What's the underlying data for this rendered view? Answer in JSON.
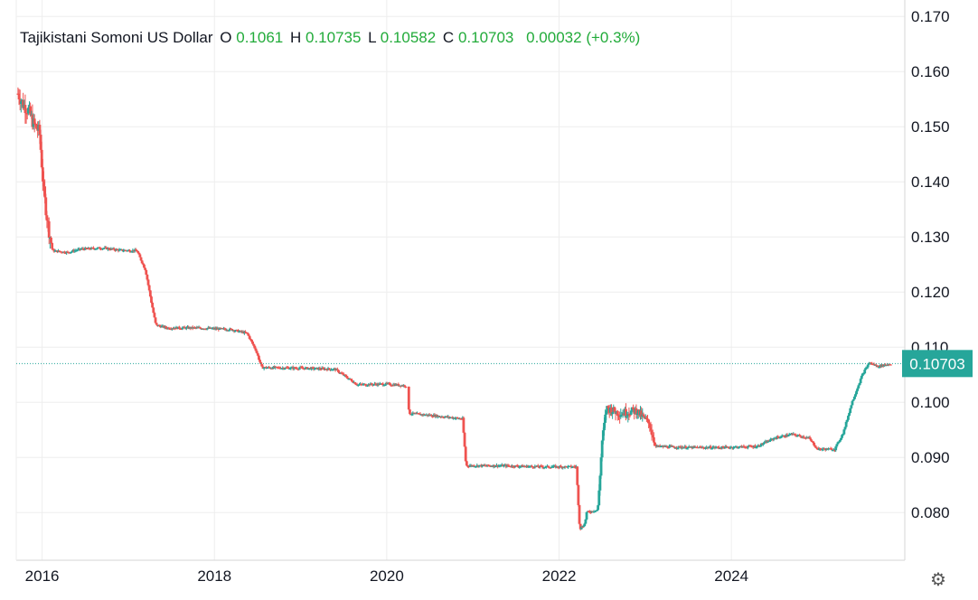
{
  "legend": {
    "symbol": "Tajikistani Somoni US Dollar",
    "o_label": "O",
    "o_value": "0.1061",
    "h_label": "H",
    "h_value": "0.10735",
    "l_label": "L",
    "l_value": "0.10582",
    "c_label": "C",
    "c_value": "0.10703",
    "change": "0.00032",
    "change_pct": "(+0.3%)"
  },
  "colors": {
    "up": "#26a69a",
    "down": "#ef5350",
    "grid": "#eeeeee",
    "legend_value": "#22ab3a",
    "price_tag": "#26a69a"
  },
  "settings_icon": "gear-icon",
  "chart_data": {
    "type": "candlestick",
    "title": "",
    "xlabel": "",
    "ylabel": "",
    "x_ticks": [
      "2016",
      "2018",
      "2020",
      "2022",
      "2024"
    ],
    "y_ticks": [
      "0.080",
      "0.090",
      "0.100",
      "0.110",
      "0.120",
      "0.130",
      "0.140",
      "0.150",
      "0.160",
      "0.170"
    ],
    "ylim": [
      0.072,
      0.172
    ],
    "xlim": [
      2015.7,
      2025.96
    ],
    "last_price": "0.10703",
    "grid": true,
    "series": [
      {
        "points": [
          [
            2015.72,
            0.156
          ],
          [
            2015.78,
            0.154
          ],
          [
            2015.84,
            0.153
          ],
          [
            2015.9,
            0.1505
          ],
          [
            2015.97,
            0.149
          ],
          [
            2016.02,
            0.138
          ],
          [
            2016.07,
            0.132
          ],
          [
            2016.12,
            0.1275
          ],
          [
            2016.3,
            0.1272
          ],
          [
            2016.45,
            0.1278
          ],
          [
            2016.7,
            0.128
          ],
          [
            2016.9,
            0.1276
          ],
          [
            2017.1,
            0.1275
          ],
          [
            2017.2,
            0.124
          ],
          [
            2017.27,
            0.118
          ],
          [
            2017.32,
            0.114
          ],
          [
            2017.45,
            0.1135
          ],
          [
            2017.8,
            0.1135
          ],
          [
            2018.2,
            0.1132
          ],
          [
            2018.38,
            0.1125
          ],
          [
            2018.48,
            0.1095
          ],
          [
            2018.55,
            0.1063
          ],
          [
            2019.0,
            0.1062
          ],
          [
            2019.4,
            0.106
          ],
          [
            2019.66,
            0.1032
          ],
          [
            2020.0,
            0.1033
          ],
          [
            2020.22,
            0.103
          ],
          [
            2020.26,
            0.098
          ],
          [
            2020.6,
            0.0975
          ],
          [
            2020.88,
            0.097
          ],
          [
            2020.92,
            0.0885
          ],
          [
            2021.3,
            0.0885
          ],
          [
            2021.8,
            0.0883
          ],
          [
            2022.2,
            0.0883
          ],
          [
            2022.24,
            0.077
          ],
          [
            2022.3,
            0.078
          ],
          [
            2022.32,
            0.08
          ],
          [
            2022.45,
            0.0805
          ],
          [
            2022.5,
            0.093
          ],
          [
            2022.55,
            0.099
          ],
          [
            2022.7,
            0.098
          ],
          [
            2022.9,
            0.0985
          ],
          [
            2023.05,
            0.096
          ],
          [
            2023.12,
            0.092
          ],
          [
            2023.5,
            0.0918
          ],
          [
            2023.9,
            0.0918
          ],
          [
            2024.3,
            0.092
          ],
          [
            2024.5,
            0.0935
          ],
          [
            2024.7,
            0.0942
          ],
          [
            2024.9,
            0.0935
          ],
          [
            2025.0,
            0.0915
          ],
          [
            2025.2,
            0.0915
          ],
          [
            2025.3,
            0.0945
          ],
          [
            2025.4,
            0.1
          ],
          [
            2025.52,
            0.105
          ],
          [
            2025.6,
            0.1072
          ],
          [
            2025.7,
            0.1065
          ],
          [
            2025.85,
            0.107
          ]
        ]
      }
    ]
  }
}
